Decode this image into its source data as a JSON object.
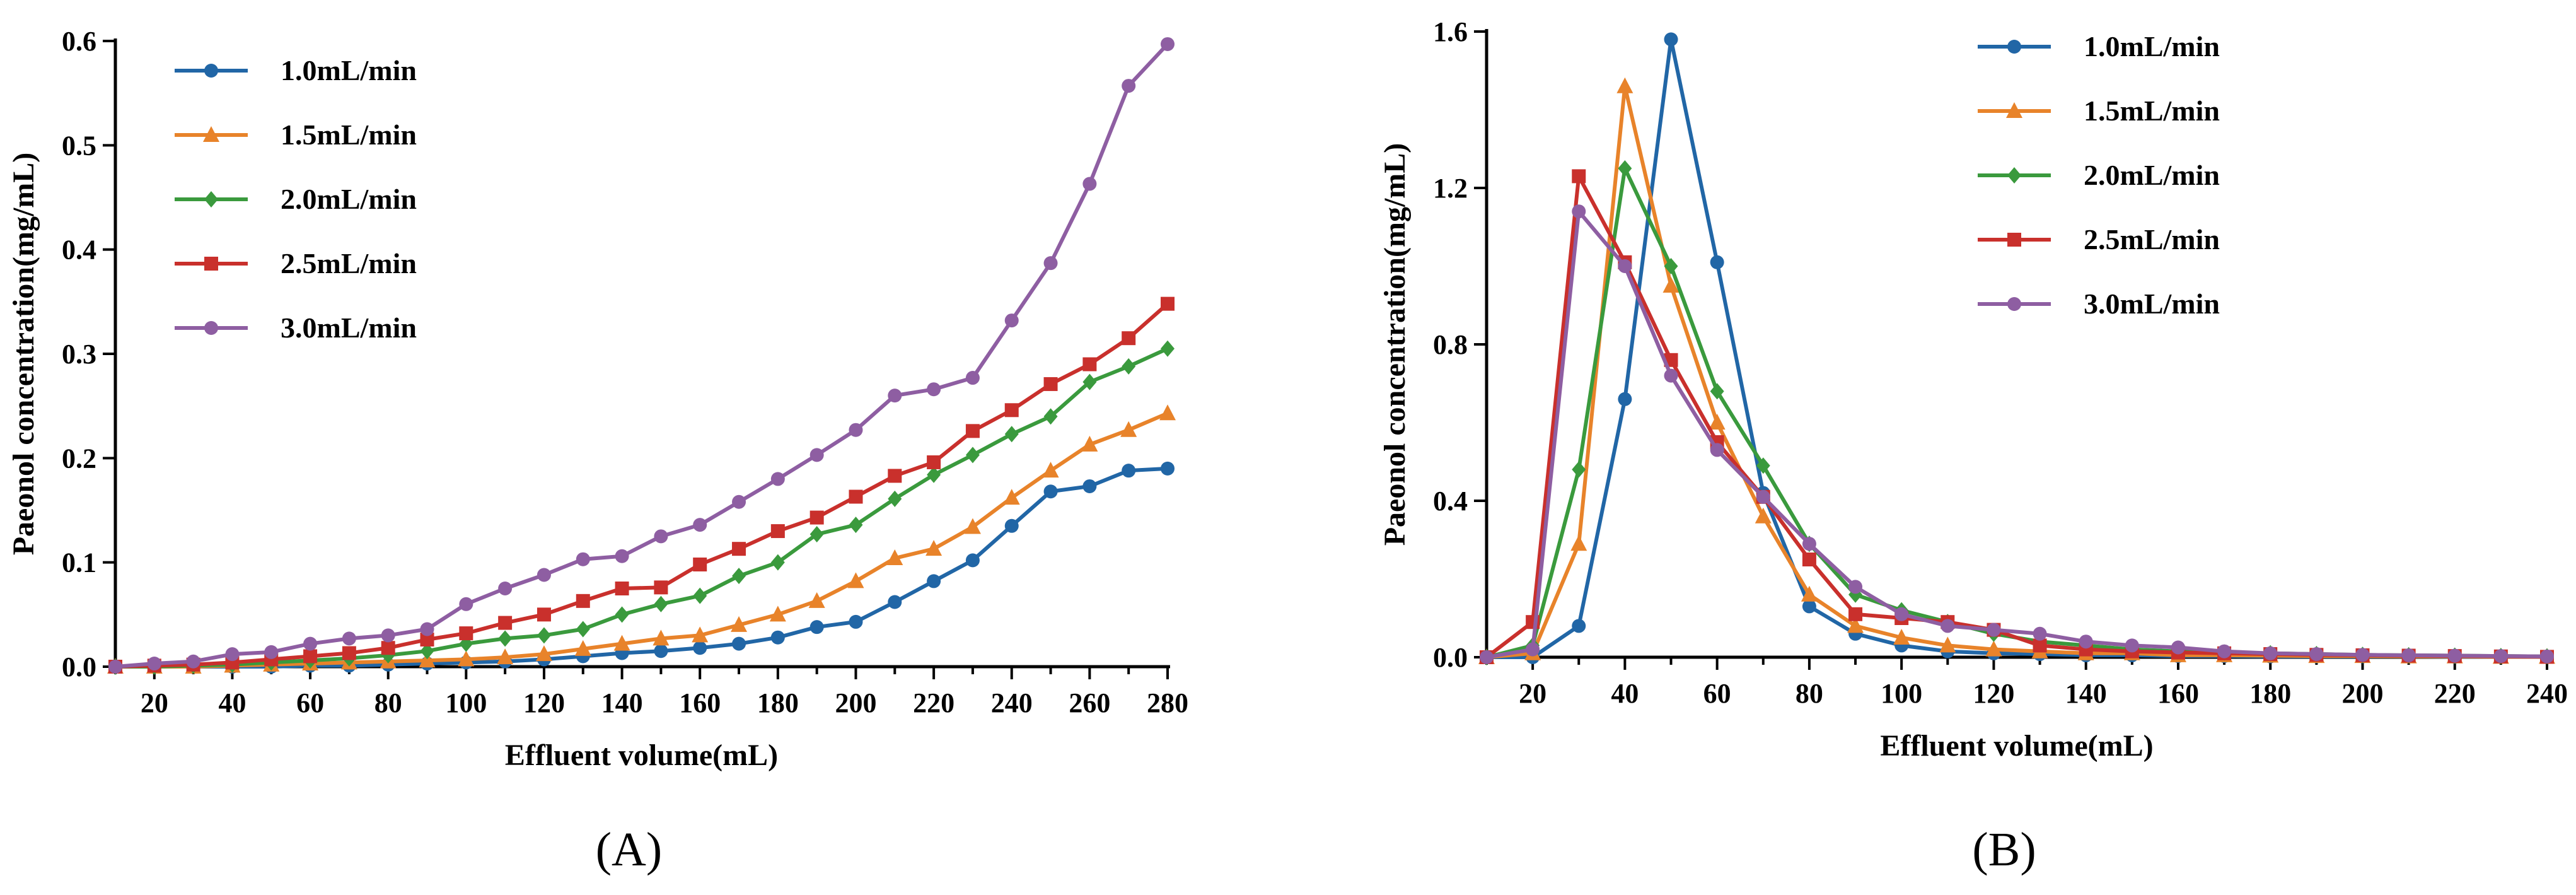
{
  "chart_data": [
    {
      "type": "line",
      "panel_label": "(A)",
      "xlabel": "Effluent volume(mL)",
      "ylabel": "Paeonol concentration(mg/mL)",
      "xlim": [
        10,
        280
      ],
      "ylim": [
        0,
        0.6
      ],
      "xticks": [
        "20",
        "40",
        "60",
        "80",
        "100",
        "120",
        "140",
        "160",
        "180",
        "200",
        "220",
        "240",
        "260",
        "280"
      ],
      "yticks": [
        "0.0",
        "0.1",
        "0.2",
        "0.3",
        "0.4",
        "0.5",
        "0.6"
      ],
      "legend_position": "top-left",
      "x": [
        10,
        20,
        30,
        40,
        50,
        60,
        70,
        80,
        90,
        100,
        110,
        120,
        130,
        140,
        150,
        160,
        170,
        180,
        190,
        200,
        210,
        220,
        230,
        240,
        250,
        260,
        270,
        280
      ],
      "series": [
        {
          "name": "1.0mL/min",
          "color": "#2166a6",
          "marker": "circle",
          "values": [
            0,
            0,
            0,
            0,
            0,
            0.001,
            0.001,
            0.002,
            0.003,
            0.004,
            0.005,
            0.007,
            0.01,
            0.013,
            0.015,
            0.018,
            0.022,
            0.028,
            0.038,
            0.043,
            0.062,
            0.082,
            0.102,
            0.135,
            0.168,
            0.173,
            0.188,
            0.19
          ]
        },
        {
          "name": "1.5mL/min",
          "color": "#e8832a",
          "marker": "triangle",
          "values": [
            0,
            0,
            0,
            0.001,
            0.002,
            0.003,
            0.004,
            0.005,
            0.006,
            0.007,
            0.009,
            0.012,
            0.017,
            0.022,
            0.027,
            0.03,
            0.04,
            0.05,
            0.063,
            0.082,
            0.104,
            0.113,
            0.134,
            0.162,
            0.188,
            0.213,
            0.227,
            0.243
          ]
        },
        {
          "name": "2.0mL/min",
          "color": "#3a9a3d",
          "marker": "diamond",
          "values": [
            0,
            0,
            0.001,
            0.002,
            0.004,
            0.006,
            0.008,
            0.011,
            0.015,
            0.022,
            0.027,
            0.03,
            0.036,
            0.05,
            0.06,
            0.068,
            0.087,
            0.1,
            0.127,
            0.136,
            0.161,
            0.184,
            0.203,
            0.223,
            0.24,
            0.273,
            0.288,
            0.305
          ]
        },
        {
          "name": "2.5mL/min",
          "color": "#c9302c",
          "marker": "square",
          "values": [
            0,
            0.001,
            0.002,
            0.004,
            0.007,
            0.01,
            0.013,
            0.018,
            0.026,
            0.032,
            0.042,
            0.05,
            0.063,
            0.075,
            0.076,
            0.098,
            0.113,
            0.13,
            0.143,
            0.163,
            0.183,
            0.196,
            0.226,
            0.246,
            0.271,
            0.29,
            0.315,
            0.348
          ]
        },
        {
          "name": "3.0mL/min",
          "color": "#8e5ea2",
          "marker": "circle",
          "values": [
            0,
            0.003,
            0.005,
            0.012,
            0.014,
            0.022,
            0.027,
            0.03,
            0.036,
            0.06,
            0.075,
            0.088,
            0.103,
            0.106,
            0.125,
            0.136,
            0.158,
            0.18,
            0.203,
            0.227,
            0.26,
            0.266,
            0.277,
            0.332,
            0.387,
            0.463,
            0.557,
            0.597
          ]
        }
      ]
    },
    {
      "type": "line",
      "panel_label": "(B)",
      "xlabel": "Effluent volume(mL)",
      "ylabel": "Paeonol concentration(mg/mL)",
      "xlim": [
        10,
        240
      ],
      "ylim": [
        0,
        1.6
      ],
      "xticks": [
        "20",
        "40",
        "60",
        "80",
        "100",
        "120",
        "140",
        "160",
        "180",
        "200",
        "220",
        "240"
      ],
      "yticks": [
        "0.0",
        "0.4",
        "0.8",
        "1.2",
        "1.6"
      ],
      "legend_position": "top-right",
      "x": [
        10,
        20,
        30,
        40,
        50,
        60,
        70,
        80,
        90,
        100,
        110,
        120,
        130,
        140,
        150,
        160,
        170,
        180,
        190,
        200,
        210,
        220,
        230,
        240
      ],
      "series": [
        {
          "name": "1.0mL/min",
          "color": "#2166a6",
          "marker": "circle",
          "values": [
            0,
            0,
            0.08,
            0.66,
            1.58,
            1.01,
            0.42,
            0.13,
            0.06,
            0.03,
            0.015,
            0.01,
            0.008,
            0.005,
            0.005,
            0.003,
            0.003,
            0.002,
            0.002,
            0.002,
            0.002,
            0.001,
            0.001,
            0.001
          ]
        },
        {
          "name": "1.5mL/min",
          "color": "#e8832a",
          "marker": "triangle",
          "values": [
            0,
            0.01,
            0.29,
            1.46,
            0.95,
            0.6,
            0.36,
            0.16,
            0.08,
            0.05,
            0.03,
            0.02,
            0.015,
            0.01,
            0.01,
            0.005,
            0.005,
            0.004,
            0.003,
            0.003,
            0.002,
            0.002,
            0.001,
            0.001
          ]
        },
        {
          "name": "2.0mL/min",
          "color": "#3a9a3d",
          "marker": "diamond",
          "values": [
            0,
            0.03,
            0.48,
            1.25,
            1.0,
            0.68,
            0.49,
            0.29,
            0.16,
            0.12,
            0.09,
            0.06,
            0.04,
            0.03,
            0.02,
            0.015,
            0.012,
            0.01,
            0.008,
            0.006,
            0.005,
            0.004,
            0.003,
            0.002
          ]
        },
        {
          "name": "2.5mL/min",
          "color": "#c9302c",
          "marker": "square",
          "values": [
            0,
            0.09,
            1.23,
            1.01,
            0.76,
            0.55,
            0.41,
            0.25,
            0.11,
            0.1,
            0.09,
            0.07,
            0.03,
            0.02,
            0.015,
            0.012,
            0.01,
            0.008,
            0.006,
            0.005,
            0.004,
            0.003,
            0.002,
            0.001
          ]
        },
        {
          "name": "3.0mL/min",
          "color": "#8e5ea2",
          "marker": "circle",
          "values": [
            0,
            0.02,
            1.14,
            1.0,
            0.72,
            0.53,
            0.41,
            0.29,
            0.18,
            0.11,
            0.08,
            0.07,
            0.06,
            0.04,
            0.03,
            0.025,
            0.015,
            0.01,
            0.008,
            0.006,
            0.005,
            0.004,
            0.003,
            0.002
          ]
        }
      ]
    }
  ]
}
